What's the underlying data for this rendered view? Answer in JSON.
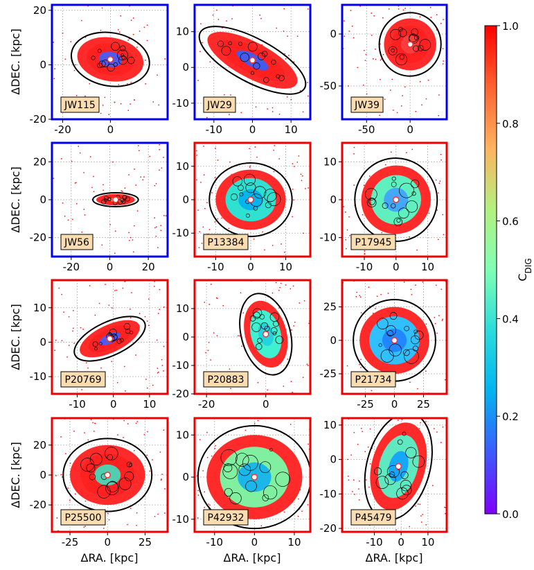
{
  "chart_data": {
    "type": "galaxy-map-grid",
    "xlabel": "ΔRA. [kpc]",
    "ylabel": "ΔDEC. [kpc]",
    "colorbar": {
      "label": "C",
      "label_sub": "DIG",
      "range": [
        0.0,
        1.0
      ],
      "ticks": [
        "0.0",
        "0.2",
        "0.4",
        "0.6",
        "0.8",
        "1.0"
      ],
      "colormap": [
        "#7f00ff",
        "#3d5afe",
        "#00b4f0",
        "#2adcdc",
        "#80ffb4",
        "#b4f080",
        "#ffb360",
        "#ff6230",
        "#ff0000"
      ]
    },
    "frame_colors": {
      "blue": "#0000ee",
      "red": "#ee0000"
    },
    "panels": [
      {
        "name": "JW115",
        "frame": "blue",
        "xlim": [
          -24.5,
          24
        ],
        "ylim": [
          -20,
          22
        ],
        "xticks": [
          -20,
          0
        ],
        "yticks": [
          -20,
          0,
          20
        ],
        "galaxy": {
          "cx": 0,
          "cy": 2,
          "rx": 14,
          "ry": 8,
          "rot": 10,
          "inner": "#ff2020",
          "mid": "#ff2020",
          "core": "#4060ff"
        }
      },
      {
        "name": "JW29",
        "frame": "blue",
        "xlim": [
          -15,
          15
        ],
        "ylim": [
          -14.5,
          17.5
        ],
        "xticks": [
          -10,
          0,
          10
        ],
        "yticks": [
          -10,
          0,
          10
        ],
        "galaxy": {
          "cx": 0,
          "cy": 2,
          "rx": 13,
          "ry": 5,
          "rot": 28,
          "inner": "#ff2020",
          "mid": "#ff2020",
          "core": "#3060ff"
        }
      },
      {
        "name": "JW39",
        "frame": "blue",
        "xlim": [
          -78,
          42
        ],
        "ylim": [
          -82,
          28
        ],
        "xticks": [
          -50,
          0
        ],
        "yticks": [
          -50,
          0
        ],
        "galaxy": {
          "cx": 0,
          "cy": -10,
          "rx": 30,
          "ry": 25,
          "rot": 10,
          "inner": "#ff2020",
          "mid": "#ff2020",
          "core": "#ff4040"
        }
      },
      {
        "name": "JW56",
        "frame": "blue",
        "xlim": [
          -30,
          30
        ],
        "ylim": [
          -30,
          30
        ],
        "xticks": [
          -20,
          0,
          20
        ],
        "yticks": [
          -20,
          0,
          20
        ],
        "galaxy": {
          "cx": 3,
          "cy": 0,
          "rx": 10,
          "ry": 3,
          "rot": 0,
          "inner": "#ff2020",
          "mid": "#ff2020",
          "core": "#ffb060"
        }
      },
      {
        "name": "P13384",
        "frame": "red",
        "xlim": [
          -16,
          17
        ],
        "ylim": [
          -17,
          17
        ],
        "xticks": [
          -10,
          0,
          10
        ],
        "yticks": [
          -10,
          0,
          10
        ],
        "galaxy": {
          "cx": 0,
          "cy": 0,
          "rx": 10,
          "ry": 9,
          "rot": 0,
          "inner": "#30e0d0",
          "mid": "#ff2020",
          "core": "#00b0f0"
        }
      },
      {
        "name": "P17945",
        "frame": "red",
        "xlim": [
          -17,
          16
        ],
        "ylim": [
          -15,
          15
        ],
        "xticks": [
          -10,
          0,
          10
        ],
        "yticks": [
          -10,
          0,
          10
        ],
        "galaxy": {
          "cx": 0,
          "cy": 0,
          "rx": 11,
          "ry": 9,
          "rot": -20,
          "inner": "#60f0c0",
          "mid": "#ff2020",
          "core": "#40a0ff"
        }
      },
      {
        "name": "P20769",
        "frame": "red",
        "xlim": [
          -17,
          15
        ],
        "ylim": [
          -15,
          18
        ],
        "xticks": [
          -10,
          0,
          10
        ],
        "yticks": [
          -10,
          0,
          10
        ],
        "galaxy": {
          "cx": -1,
          "cy": 1,
          "rx": 9,
          "ry": 4,
          "rot": -25,
          "inner": "#ff2020",
          "mid": "#ff2020",
          "core": "#4060ff"
        }
      },
      {
        "name": "P20883",
        "frame": "red",
        "xlim": [
          -24,
          15
        ],
        "ylim": [
          -20,
          20
        ],
        "xticks": [
          -20,
          0
        ],
        "yticks": [
          -20,
          -10,
          0,
          10
        ],
        "galaxy": {
          "cx": 0,
          "cy": 1,
          "rx": 7,
          "ry": 12,
          "rot": -15,
          "inner": "#40f0d0",
          "mid": "#ff2020",
          "core": "#20d0e0"
        }
      },
      {
        "name": "P21734",
        "frame": "red",
        "xlim": [
          -45,
          45
        ],
        "ylim": [
          -40,
          45
        ],
        "xticks": [
          -25,
          0,
          25
        ],
        "yticks": [
          -25,
          0,
          25
        ],
        "galaxy": {
          "cx": 0,
          "cy": 0,
          "rx": 30,
          "ry": 25,
          "rot": 0,
          "inner": "#30c0ff",
          "mid": "#ff2020",
          "core": "#2080ff"
        }
      },
      {
        "name": "P25500",
        "frame": "red",
        "xlim": [
          -37,
          40
        ],
        "ylim": [
          -38,
          38
        ],
        "xticks": [
          -25,
          0,
          25
        ],
        "yticks": [
          -20,
          0,
          20
        ],
        "galaxy": {
          "cx": 0,
          "cy": 0,
          "rx": 25,
          "ry": 20,
          "rot": 0,
          "inner": "#ff2020",
          "mid": "#ff2020",
          "core": "#40e0c0"
        }
      },
      {
        "name": "P42932",
        "frame": "red",
        "xlim": [
          -15,
          14
        ],
        "ylim": [
          -13,
          14
        ],
        "xticks": [
          -10,
          0,
          10
        ],
        "yticks": [
          -10,
          0,
          10
        ],
        "galaxy": {
          "cx": 0,
          "cy": 0,
          "rx": 12,
          "ry": 10,
          "rot": 0,
          "inner": "#80f0a0",
          "mid": "#ff2020",
          "core": "#10b0f0"
        }
      },
      {
        "name": "P45479",
        "frame": "red",
        "xlim": [
          -22,
          17
        ],
        "ylim": [
          -21,
          12
        ],
        "xticks": [
          -10,
          0,
          10
        ],
        "yticks": [
          -20,
          -10,
          0,
          10
        ],
        "galaxy": {
          "cx": -1,
          "cy": -2,
          "rx": 10,
          "ry": 13,
          "rot": 15,
          "inner": "#60e8c0",
          "mid": "#ff2020",
          "core": "#10a0ff"
        }
      }
    ]
  }
}
